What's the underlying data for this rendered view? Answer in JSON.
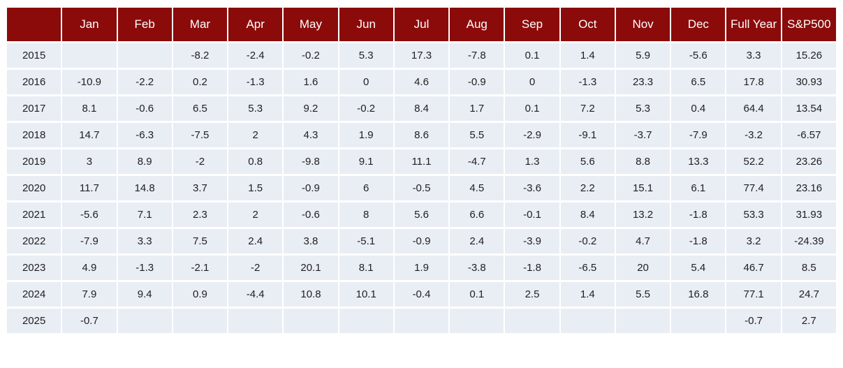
{
  "colors": {
    "header_bg": "#8B0B0B",
    "header_text": "#FFFFFF",
    "row_bg": "#E9EDF4",
    "cell_text": "#202124",
    "separator": "#FFFFFF"
  },
  "chart_data": {
    "type": "table",
    "columns": [
      "",
      "Jan",
      "Feb",
      "Mar",
      "Apr",
      "May",
      "Jun",
      "Jul",
      "Aug",
      "Sep",
      "Oct",
      "Nov",
      "Dec",
      "Full Year",
      "S&P500"
    ],
    "rows": [
      [
        "2015",
        "",
        "",
        "-8.2",
        "-2.4",
        "-0.2",
        "5.3",
        "17.3",
        "-7.8",
        "0.1",
        "1.4",
        "5.9",
        "-5.6",
        "3.3",
        "15.26"
      ],
      [
        "2016",
        "-10.9",
        "-2.2",
        "0.2",
        "-1.3",
        "1.6",
        "0",
        "4.6",
        "-0.9",
        "0",
        "-1.3",
        "23.3",
        "6.5",
        "17.8",
        "30.93"
      ],
      [
        "2017",
        "8.1",
        "-0.6",
        "6.5",
        "5.3",
        "9.2",
        "-0.2",
        "8.4",
        "1.7",
        "0.1",
        "7.2",
        "5.3",
        "0.4",
        "64.4",
        "13.54"
      ],
      [
        "2018",
        "14.7",
        "-6.3",
        "-7.5",
        "2",
        "4.3",
        "1.9",
        "8.6",
        "5.5",
        "-2.9",
        "-9.1",
        "-3.7",
        "-7.9",
        "-3.2",
        "-6.57"
      ],
      [
        "2019",
        "3",
        "8.9",
        "-2",
        "0.8",
        "-9.8",
        "9.1",
        "11.1",
        "-4.7",
        "1.3",
        "5.6",
        "8.8",
        "13.3",
        "52.2",
        "23.26"
      ],
      [
        "2020",
        "11.7",
        "14.8",
        "3.7",
        "1.5",
        "-0.9",
        "6",
        "-0.5",
        "4.5",
        "-3.6",
        "2.2",
        "15.1",
        "6.1",
        "77.4",
        "23.16"
      ],
      [
        "2021",
        "-5.6",
        "7.1",
        "2.3",
        "2",
        "-0.6",
        "8",
        "5.6",
        "6.6",
        "-0.1",
        "8.4",
        "13.2",
        "-1.8",
        "53.3",
        "31.93"
      ],
      [
        "2022",
        "-7.9",
        "3.3",
        "7.5",
        "2.4",
        "3.8",
        "-5.1",
        "-0.9",
        "2.4",
        "-3.9",
        "-0.2",
        "4.7",
        "-1.8",
        "3.2",
        "-24.39"
      ],
      [
        "2023",
        "4.9",
        "-1.3",
        "-2.1",
        "-2",
        "20.1",
        "8.1",
        "1.9",
        "-3.8",
        "-1.8",
        "-6.5",
        "20",
        "5.4",
        "46.7",
        "8.5"
      ],
      [
        "2024",
        "7.9",
        "9.4",
        "0.9",
        "-4.4",
        "10.8",
        "10.1",
        "-0.4",
        "0.1",
        "2.5",
        "1.4",
        "5.5",
        "16.8",
        "77.1",
        "24.7"
      ],
      [
        "2025",
        "-0.7",
        "",
        "",
        "",
        "",
        "",
        "",
        "",
        "",
        "",
        "",
        "",
        "-0.7",
        "2.7"
      ]
    ]
  }
}
